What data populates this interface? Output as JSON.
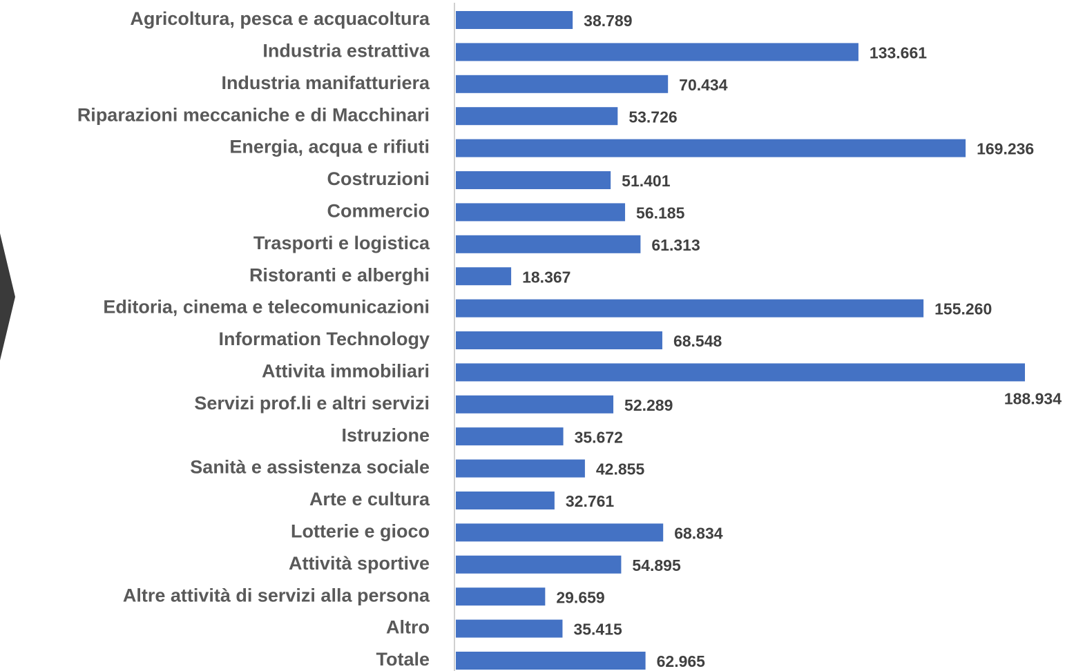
{
  "chart_data": {
    "type": "bar",
    "orientation": "horizontal",
    "color": "#4472c4",
    "categories": [
      "Agricoltura, pesca e acquacoltura",
      "Industria estrattiva",
      "Industria manifatturiera",
      "Riparazioni meccaniche e di Macchinari",
      "Energia, acqua e rifiuti",
      "Costruzioni",
      "Commercio",
      "Trasporti e logistica",
      "Ristoranti e alberghi",
      "Editoria, cinema e telecomunicazioni",
      "Information Technology",
      "Attivita immobiliari",
      "Servizi prof.li e altri servizi",
      "Istruzione",
      "Sanità e assistenza sociale",
      "Arte e cultura",
      "Lotterie e gioco",
      "Attività sportive",
      "Altre attività di servizi alla persona",
      "Altro",
      "Totale"
    ],
    "values": [
      38789,
      133661,
      70434,
      53726,
      169236,
      51401,
      56185,
      61313,
      18367,
      155260,
      68548,
      188934,
      52289,
      35672,
      42855,
      32761,
      68834,
      54895,
      29659,
      35415,
      62965
    ],
    "value_labels": [
      "38.789",
      "133.661",
      "70.434",
      "53.726",
      "169.236",
      "51.401",
      "56.185",
      "61.313",
      "18.367",
      "155.260",
      "68.548",
      "188.934",
      "52.289",
      "35.672",
      "42.855",
      "32.761",
      "68.834",
      "54.895",
      "29.659",
      "35.415",
      "62.965"
    ]
  }
}
